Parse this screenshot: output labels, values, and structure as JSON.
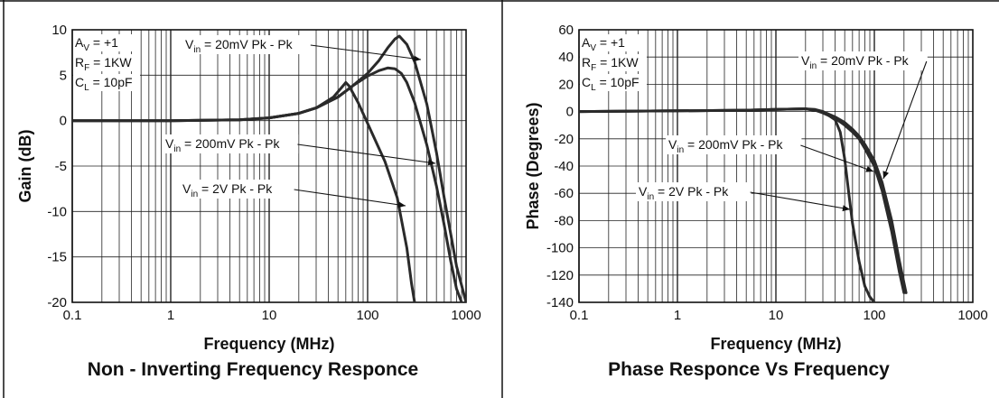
{
  "chart_data": [
    {
      "type": "line",
      "title": "Non - Inverting Frequency Responce",
      "xlabel": "Frequency (MHz)",
      "ylabel": "Gain (dB)",
      "xscale": "log",
      "xlim": [
        0.1,
        1000
      ],
      "ylim": [
        -20,
        10
      ],
      "xticks": [
        "0.1",
        "1",
        "10",
        "100",
        "1000"
      ],
      "yticks": [
        "10",
        "5",
        "0",
        "-5",
        "-10",
        "-15",
        "-20"
      ],
      "yticks_values": [
        10,
        5,
        0,
        -5,
        -10,
        -15,
        -20
      ],
      "grid": true,
      "conditions": [
        {
          "sym": "A",
          "sub": "V",
          "val": " = +1"
        },
        {
          "sym": "R",
          "sub": "F",
          "val": " = 1KW"
        },
        {
          "sym": "C",
          "sub": "L",
          "val": " = 10pF"
        }
      ],
      "series": [
        {
          "label": {
            "sym": "V",
            "sub": "in",
            "val": " = 20mV Pk - Pk"
          },
          "x": [
            0.1,
            1,
            5,
            10,
            20,
            30,
            50,
            70,
            100,
            130,
            160,
            190,
            210,
            250,
            300,
            400,
            500,
            600,
            800,
            1000
          ],
          "values": [
            0,
            0,
            0.1,
            0.3,
            0.8,
            1.4,
            2.6,
            3.8,
            5.2,
            6.6,
            8.0,
            9.0,
            9.3,
            8.4,
            6.5,
            1.8,
            -3.5,
            -8.5,
            -16.0,
            -20.0
          ]
        },
        {
          "label": {
            "sym": "V",
            "sub": "in",
            "val": " = 200mV Pk - Pk"
          },
          "x": [
            0.1,
            1,
            5,
            10,
            20,
            30,
            50,
            70,
            100,
            130,
            160,
            190,
            220,
            250,
            300,
            400,
            500,
            600,
            700,
            800,
            900
          ],
          "values": [
            0,
            0,
            0.1,
            0.3,
            0.8,
            1.4,
            2.6,
            3.8,
            4.9,
            5.5,
            5.8,
            5.7,
            5.2,
            4.2,
            2.0,
            -2.7,
            -7.2,
            -11.5,
            -15.5,
            -18.5,
            -20.0
          ]
        },
        {
          "label": {
            "sym": "V",
            "sub": "in",
            "val": " = 2V Pk - Pk"
          },
          "x": [
            0.1,
            1,
            5,
            10,
            20,
            30,
            45,
            55,
            60,
            65,
            80,
            100,
            150,
            200,
            250,
            280,
            300
          ],
          "values": [
            0,
            0,
            0.1,
            0.3,
            0.8,
            1.4,
            2.6,
            3.7,
            4.2,
            3.8,
            2.0,
            -0.3,
            -4.5,
            -8.5,
            -14.0,
            -18.0,
            -20.0
          ]
        }
      ]
    },
    {
      "type": "line",
      "title": "Phase Responce Vs Frequency",
      "xlabel": "Frequency (MHz)",
      "ylabel": "Phase (Degrees)",
      "xscale": "log",
      "xlim": [
        0.1,
        1000
      ],
      "ylim": [
        -140,
        60
      ],
      "xticks": [
        "0.1",
        "1",
        "10",
        "100",
        "1000"
      ],
      "yticks": [
        "60",
        "40",
        "20",
        "0",
        "-20",
        "-40",
        "-60",
        "-80",
        "-100",
        "-120",
        "-140"
      ],
      "yticks_values": [
        60,
        40,
        20,
        0,
        -20,
        -40,
        -60,
        -80,
        -100,
        -120,
        -140
      ],
      "grid": true,
      "conditions": [
        {
          "sym": "A",
          "sub": "V",
          "val": " = +1"
        },
        {
          "sym": "R",
          "sub": "F",
          "val": " = 1KW"
        },
        {
          "sym": "C",
          "sub": "L",
          "val": " = 10pF"
        }
      ],
      "series": [
        {
          "label": {
            "sym": "V",
            "sub": "in",
            "val": " = 20mV Pk - Pk"
          },
          "x": [
            0.1,
            1,
            5,
            10,
            20,
            25,
            30,
            40,
            50,
            60,
            70,
            80,
            100,
            120,
            150,
            180,
            210
          ],
          "values": [
            0,
            0.5,
            1,
            1.5,
            2,
            1.5,
            0,
            -4,
            -8,
            -13,
            -18,
            -24,
            -36,
            -52,
            -80,
            -110,
            -133
          ]
        },
        {
          "label": {
            "sym": "V",
            "sub": "in",
            "val": " = 200mV Pk - Pk"
          },
          "x": [
            0.1,
            1,
            5,
            10,
            20,
            25,
            30,
            40,
            50,
            60,
            70,
            80,
            100,
            120,
            150,
            180,
            200
          ],
          "values": [
            0,
            0.5,
            1,
            1.5,
            2,
            1,
            -1,
            -5,
            -10,
            -15,
            -20,
            -27,
            -40,
            -58,
            -88,
            -118,
            -133
          ]
        },
        {
          "label": {
            "sym": "V",
            "sub": "in",
            "val": " = 2V Pk - Pk"
          },
          "x": [
            0.1,
            1,
            5,
            10,
            20,
            30,
            40,
            45,
            50,
            55,
            60,
            70,
            80,
            90,
            100
          ],
          "values": [
            0,
            0.5,
            1,
            1.5,
            2,
            0,
            -6,
            -15,
            -35,
            -60,
            -82,
            -110,
            -128,
            -136,
            -140
          ]
        }
      ]
    }
  ]
}
